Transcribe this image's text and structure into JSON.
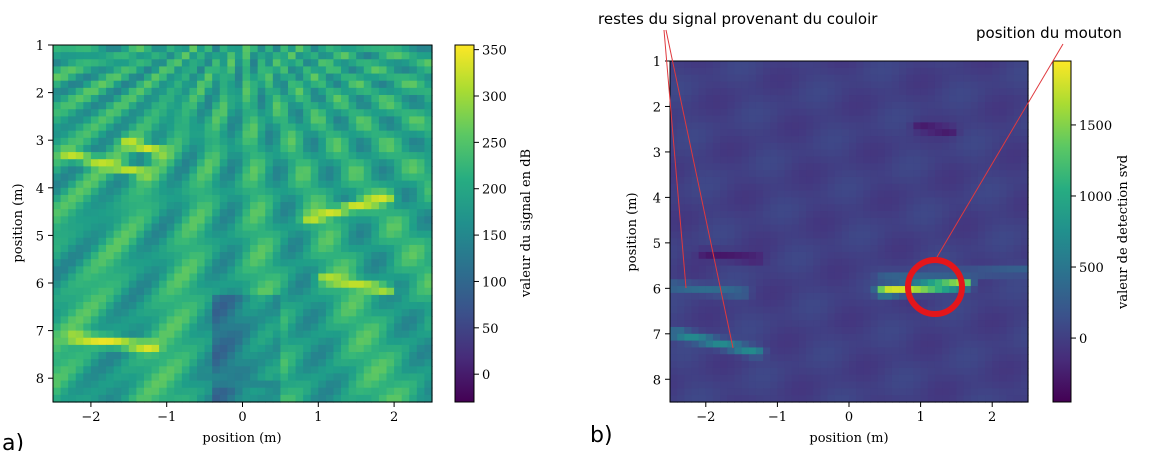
{
  "chart_data": [
    {
      "panel": "a)",
      "type": "heatmap",
      "xlabel": "position (m)",
      "ylabel": "position (m)",
      "xlim": [
        -2.5,
        2.5
      ],
      "ylim": [
        8.5,
        1
      ],
      "x_ticks": [
        "−2",
        "−1",
        "0",
        "1",
        "2"
      ],
      "y_ticks": [
        "1",
        "2",
        "3",
        "4",
        "5",
        "6",
        "7",
        "8"
      ],
      "colorbar": {
        "label": "valeur du signal en dB",
        "range": [
          -30,
          355
        ],
        "ticks": [
          "0",
          "50",
          "100",
          "150",
          "200",
          "250",
          "300",
          "350"
        ],
        "colormap": "viridis"
      },
      "background_level": 200,
      "features": [
        {
          "x": [
            -2.3,
            -1.3
          ],
          "y": [
            3.3,
            3.7
          ],
          "value": 320
        },
        {
          "x": [
            -1.5,
            -1.1
          ],
          "y": [
            3.05,
            3.25
          ],
          "value": 330
        },
        {
          "x": [
            0.9,
            1.9
          ],
          "y": [
            4.65,
            4.2
          ],
          "value": 330
        },
        {
          "x": [
            1.1,
            1.9
          ],
          "y": [
            5.9,
            6.15
          ],
          "value": 320
        },
        {
          "x": [
            -2.2,
            -1.2
          ],
          "y": [
            7.15,
            7.35
          ],
          "value": 345
        },
        {
          "x": [
            -0.5,
            0.4
          ],
          "y": [
            8.0,
            8.15
          ],
          "value": 150
        }
      ]
    },
    {
      "panel": "b)",
      "type": "heatmap",
      "xlabel": "position (m)",
      "ylabel": "position (m)",
      "xlim": [
        -2.5,
        2.5
      ],
      "ylim": [
        8.5,
        1
      ],
      "x_ticks": [
        "−2",
        "−1",
        "0",
        "1",
        "2"
      ],
      "y_ticks": [
        "1",
        "2",
        "3",
        "4",
        "5",
        "6",
        "7",
        "8"
      ],
      "colorbar": {
        "label": "valeur de detection svd",
        "range": [
          -450,
          1950
        ],
        "ticks": [
          "0",
          "500",
          "1000",
          "1500"
        ],
        "colormap": "viridis"
      },
      "background_level": 0,
      "features": [
        {
          "x": [
            0.5,
            1.6
          ],
          "y": [
            6.05,
            5.9
          ],
          "value": 1800
        },
        {
          "x": [
            -2.4,
            -1.3
          ],
          "y": [
            7.0,
            7.4
          ],
          "value": 700
        },
        {
          "x": [
            -2.5,
            -1.5
          ],
          "y": [
            5.95,
            6.1
          ],
          "value": 400
        },
        {
          "x": [
            0.5,
            2.5
          ],
          "y": [
            5.75,
            5.6
          ],
          "value": 300
        },
        {
          "x": [
            1.0,
            1.4
          ],
          "y": [
            2.45,
            2.55
          ],
          "value": -300
        },
        {
          "x": [
            -2.0,
            -1.3
          ],
          "y": [
            5.25,
            5.35
          ],
          "value": -300
        }
      ],
      "annotations": [
        {
          "text": "restes du signal provenant du couloir"
        },
        {
          "text": "position  du mouton"
        }
      ]
    }
  ]
}
